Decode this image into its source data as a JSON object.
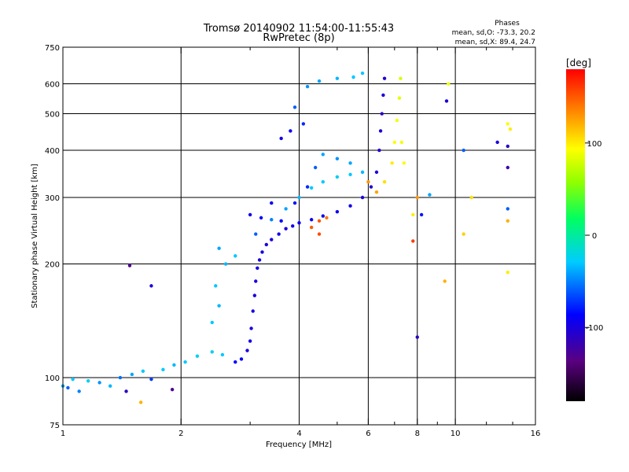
{
  "chart_data": {
    "type": "scatter",
    "title": "Tromsø 20140902 11:54:00-11:55:43",
    "subtitle": "RwPretec (8p)",
    "phases": {
      "heading": "Phases",
      "line_o": "mean, sd,O: -73.3, 20.2",
      "line_x": "mean, sd,X: 89.4, 24.7"
    },
    "xlabel": "Frequency [MHz]",
    "ylabel": "Stationary phase Virtual Height [km]",
    "x_scale": "log",
    "y_scale": "log",
    "xlim": [
      1,
      16
    ],
    "ylim": [
      75,
      750
    ],
    "x_ticks": [
      1,
      2,
      4,
      6,
      8,
      10,
      16
    ],
    "x_minor_ticks": [
      3,
      5,
      7,
      9,
      12,
      14
    ],
    "y_ticks": [
      75,
      100,
      200,
      300,
      400,
      500,
      600,
      750
    ],
    "x_gridlines": [
      2,
      4,
      6,
      8,
      10
    ],
    "y_gridlines": [
      100,
      200,
      300,
      400,
      500,
      600
    ],
    "grid": true,
    "colorbar": {
      "title": "[deg]",
      "range": [
        -180,
        180
      ],
      "ticks": [
        100,
        0,
        -100
      ]
    },
    "series": [
      {
        "values": [
          {
            "x": 1.0,
            "y": 95,
            "c": -40
          },
          {
            "x": 1.03,
            "y": 94,
            "c": -60
          },
          {
            "x": 1.06,
            "y": 99,
            "c": -30
          },
          {
            "x": 1.1,
            "y": 92,
            "c": -50
          },
          {
            "x": 1.16,
            "y": 98,
            "c": -25
          },
          {
            "x": 1.24,
            "y": 97,
            "c": -45
          },
          {
            "x": 1.32,
            "y": 95,
            "c": -35
          },
          {
            "x": 1.4,
            "y": 100,
            "c": -55
          },
          {
            "x": 1.5,
            "y": 102,
            "c": -40
          },
          {
            "x": 1.6,
            "y": 104,
            "c": -30
          },
          {
            "x": 1.68,
            "y": 99,
            "c": -70
          },
          {
            "x": 1.8,
            "y": 105,
            "c": -30
          },
          {
            "x": 1.92,
            "y": 108,
            "c": -35
          },
          {
            "x": 2.05,
            "y": 110,
            "c": -30
          },
          {
            "x": 2.2,
            "y": 114,
            "c": -25
          },
          {
            "x": 2.4,
            "y": 117,
            "c": -25
          },
          {
            "x": 2.55,
            "y": 115,
            "c": -30
          },
          {
            "x": 2.75,
            "y": 110,
            "c": -85
          },
          {
            "x": 2.85,
            "y": 112,
            "c": -90
          },
          {
            "x": 2.95,
            "y": 118,
            "c": -100
          },
          {
            "x": 3.0,
            "y": 125,
            "c": -95
          },
          {
            "x": 3.02,
            "y": 135,
            "c": -100
          },
          {
            "x": 3.05,
            "y": 150,
            "c": -95
          },
          {
            "x": 3.08,
            "y": 165,
            "c": -100
          },
          {
            "x": 3.1,
            "y": 180,
            "c": -100
          },
          {
            "x": 3.13,
            "y": 195,
            "c": -95
          },
          {
            "x": 3.17,
            "y": 205,
            "c": -100
          },
          {
            "x": 3.22,
            "y": 215,
            "c": -95
          },
          {
            "x": 3.3,
            "y": 225,
            "c": -100
          },
          {
            "x": 3.4,
            "y": 232,
            "c": -100
          },
          {
            "x": 3.55,
            "y": 240,
            "c": -95
          },
          {
            "x": 3.7,
            "y": 248,
            "c": -100
          },
          {
            "x": 3.85,
            "y": 252,
            "c": -95
          },
          {
            "x": 4.0,
            "y": 257,
            "c": -90
          },
          {
            "x": 4.3,
            "y": 262,
            "c": -95
          },
          {
            "x": 4.6,
            "y": 268,
            "c": -90
          },
          {
            "x": 5.0,
            "y": 275,
            "c": -90
          },
          {
            "x": 5.4,
            "y": 285,
            "c": -95
          },
          {
            "x": 5.8,
            "y": 300,
            "c": -100
          },
          {
            "x": 6.1,
            "y": 320,
            "c": -105
          },
          {
            "x": 6.3,
            "y": 350,
            "c": -100
          },
          {
            "x": 6.4,
            "y": 400,
            "c": -105
          },
          {
            "x": 6.45,
            "y": 450,
            "c": -100
          },
          {
            "x": 6.5,
            "y": 500,
            "c": -110
          },
          {
            "x": 6.55,
            "y": 560,
            "c": -100
          },
          {
            "x": 6.6,
            "y": 620,
            "c": -105
          },
          {
            "x": 3.1,
            "y": 240,
            "c": -60
          },
          {
            "x": 3.4,
            "y": 262,
            "c": -50
          },
          {
            "x": 3.7,
            "y": 280,
            "c": -40
          },
          {
            "x": 4.0,
            "y": 300,
            "c": -35
          },
          {
            "x": 4.3,
            "y": 318,
            "c": -30
          },
          {
            "x": 4.6,
            "y": 330,
            "c": -30
          },
          {
            "x": 5.0,
            "y": 340,
            "c": -25
          },
          {
            "x": 5.4,
            "y": 345,
            "c": -30
          },
          {
            "x": 5.8,
            "y": 350,
            "c": -35
          },
          {
            "x": 3.6,
            "y": 260,
            "c": -85
          },
          {
            "x": 3.9,
            "y": 290,
            "c": -80
          },
          {
            "x": 4.2,
            "y": 320,
            "c": -75
          },
          {
            "x": 4.4,
            "y": 360,
            "c": -60
          },
          {
            "x": 4.6,
            "y": 390,
            "c": -40
          },
          {
            "x": 5.0,
            "y": 380,
            "c": -45
          },
          {
            "x": 5.4,
            "y": 370,
            "c": -40
          },
          {
            "x": 3.0,
            "y": 270,
            "c": -95
          },
          {
            "x": 3.2,
            "y": 265,
            "c": -90
          },
          {
            "x": 3.4,
            "y": 290,
            "c": -90
          },
          {
            "x": 4.2,
            "y": 590,
            "c": -45
          },
          {
            "x": 4.5,
            "y": 610,
            "c": -40
          },
          {
            "x": 5.0,
            "y": 620,
            "c": -35
          },
          {
            "x": 5.5,
            "y": 625,
            "c": -30
          },
          {
            "x": 5.8,
            "y": 640,
            "c": -30
          },
          {
            "x": 3.6,
            "y": 430,
            "c": -95
          },
          {
            "x": 3.8,
            "y": 450,
            "c": -90
          },
          {
            "x": 4.1,
            "y": 470,
            "c": -75
          },
          {
            "x": 3.9,
            "y": 520,
            "c": -60
          },
          {
            "x": 2.5,
            "y": 220,
            "c": -40
          },
          {
            "x": 2.6,
            "y": 200,
            "c": -35
          },
          {
            "x": 2.75,
            "y": 210,
            "c": -30
          },
          {
            "x": 2.45,
            "y": 175,
            "c": -30
          },
          {
            "x": 2.5,
            "y": 155,
            "c": -35
          },
          {
            "x": 2.4,
            "y": 140,
            "c": -30
          },
          {
            "x": 4.3,
            "y": 250,
            "c": 150
          },
          {
            "x": 4.5,
            "y": 260,
            "c": 150
          },
          {
            "x": 4.7,
            "y": 265,
            "c": 140
          },
          {
            "x": 4.5,
            "y": 240,
            "c": 155
          },
          {
            "x": 6.0,
            "y": 330,
            "c": 130
          },
          {
            "x": 6.3,
            "y": 310,
            "c": 125
          },
          {
            "x": 6.6,
            "y": 330,
            "c": 105
          },
          {
            "x": 6.9,
            "y": 370,
            "c": 100
          },
          {
            "x": 7.0,
            "y": 420,
            "c": 95
          },
          {
            "x": 7.1,
            "y": 480,
            "c": 90
          },
          {
            "x": 7.2,
            "y": 550,
            "c": 85
          },
          {
            "x": 7.25,
            "y": 620,
            "c": 80
          },
          {
            "x": 7.3,
            "y": 420,
            "c": 90
          },
          {
            "x": 7.4,
            "y": 370,
            "c": 95
          },
          {
            "x": 1.48,
            "y": 198,
            "c": -130
          },
          {
            "x": 1.68,
            "y": 175,
            "c": -100
          },
          {
            "x": 1.45,
            "y": 92,
            "c": -110
          },
          {
            "x": 1.9,
            "y": 93,
            "c": -130
          },
          {
            "x": 1.58,
            "y": 86,
            "c": 120
          },
          {
            "x": 7.8,
            "y": 230,
            "c": 160
          },
          {
            "x": 8.0,
            "y": 300,
            "c": 130
          },
          {
            "x": 8.2,
            "y": 270,
            "c": -80
          },
          {
            "x": 8.6,
            "y": 305,
            "c": -40
          },
          {
            "x": 9.4,
            "y": 180,
            "c": 120
          },
          {
            "x": 9.6,
            "y": 600,
            "c": 90
          },
          {
            "x": 9.5,
            "y": 540,
            "c": -100
          },
          {
            "x": 8.0,
            "y": 128,
            "c": -110
          },
          {
            "x": 10.5,
            "y": 400,
            "c": -60
          },
          {
            "x": 10.5,
            "y": 240,
            "c": 110
          },
          {
            "x": 11.0,
            "y": 300,
            "c": 105
          },
          {
            "x": 12.8,
            "y": 420,
            "c": -100
          },
          {
            "x": 13.6,
            "y": 470,
            "c": 95
          },
          {
            "x": 13.8,
            "y": 455,
            "c": 100
          },
          {
            "x": 13.6,
            "y": 410,
            "c": -110
          },
          {
            "x": 13.6,
            "y": 360,
            "c": -120
          },
          {
            "x": 13.6,
            "y": 280,
            "c": -60
          },
          {
            "x": 13.6,
            "y": 260,
            "c": 120
          },
          {
            "x": 13.6,
            "y": 190,
            "c": 100
          },
          {
            "x": 7.8,
            "y": 270,
            "c": 100
          }
        ]
      }
    ]
  }
}
